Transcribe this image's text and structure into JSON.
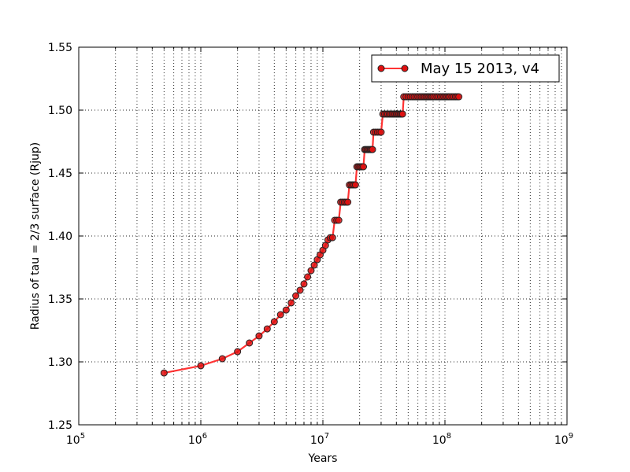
{
  "chart_data": {
    "type": "line",
    "xscale": "log",
    "xlabel": "Years",
    "ylabel": "Radius of tau = 2/3 surface (Rjup)",
    "xlim": [
      100000,
      1000000000
    ],
    "ylim": [
      1.25,
      1.55
    ],
    "grid": true,
    "legend_position": "top-right",
    "x_ticks": [
      {
        "base": "10",
        "exp": "5",
        "value": 100000
      },
      {
        "base": "10",
        "exp": "6",
        "value": 1000000
      },
      {
        "base": "10",
        "exp": "7",
        "value": 10000000
      },
      {
        "base": "10",
        "exp": "8",
        "value": 100000000
      },
      {
        "base": "10",
        "exp": "9",
        "value": 1000000000
      }
    ],
    "y_ticks": [
      "1.25",
      "1.30",
      "1.35",
      "1.40",
      "1.45",
      "1.50",
      "1.55"
    ],
    "colors": {
      "line": "#ff3333",
      "marker_fill": "#e01010",
      "marker_edge": "#222222",
      "grid": "#000000"
    },
    "series": [
      {
        "name": "May 15 2013, v4",
        "points": [
          [
            500000,
            1.2912
          ],
          [
            1000000,
            1.2969
          ],
          [
            1500000,
            1.3025
          ],
          [
            2000000,
            1.3081
          ],
          [
            2500000,
            1.315
          ],
          [
            3000000,
            1.3206
          ],
          [
            3500000,
            1.3262
          ],
          [
            4000000,
            1.3319
          ],
          [
            4500000,
            1.3375
          ],
          [
            5000000,
            1.3412
          ],
          [
            5500000,
            1.3469
          ],
          [
            6000000,
            1.3525
          ],
          [
            6500000,
            1.3569
          ],
          [
            7000000,
            1.3619
          ],
          [
            7500000,
            1.3675
          ],
          [
            8000000,
            1.3725
          ],
          [
            8500000,
            1.3769
          ],
          [
            9000000,
            1.3812
          ],
          [
            9500000,
            1.385
          ],
          [
            10000000,
            1.3887
          ],
          [
            10500000,
            1.3925
          ],
          [
            11000000,
            1.3969
          ],
          [
            11500000,
            1.3987
          ],
          [
            12000000,
            1.3987
          ],
          [
            12500000,
            1.4125
          ],
          [
            13000000,
            1.4125
          ],
          [
            13500000,
            1.4125
          ],
          [
            14000000,
            1.4269
          ],
          [
            14500000,
            1.4269
          ],
          [
            15000000,
            1.4269
          ],
          [
            15500000,
            1.4269
          ],
          [
            16000000,
            1.4269
          ],
          [
            16500000,
            1.4406
          ],
          [
            17000000,
            1.4406
          ],
          [
            17500000,
            1.4406
          ],
          [
            18000000,
            1.4406
          ],
          [
            18500000,
            1.4406
          ],
          [
            19000000,
            1.455
          ],
          [
            19500000,
            1.455
          ],
          [
            20000000,
            1.455
          ],
          [
            20500000,
            1.455
          ],
          [
            21000000,
            1.455
          ],
          [
            21500000,
            1.455
          ],
          [
            22000000,
            1.4687
          ],
          [
            22500000,
            1.4687
          ],
          [
            23000000,
            1.4687
          ],
          [
            23500000,
            1.4687
          ],
          [
            24000000,
            1.4687
          ],
          [
            24500000,
            1.4687
          ],
          [
            25000000,
            1.4687
          ],
          [
            25500000,
            1.4687
          ],
          [
            26000000,
            1.4825
          ],
          [
            27000000,
            1.4825
          ],
          [
            28000000,
            1.4825
          ],
          [
            29000000,
            1.4825
          ],
          [
            30000000,
            1.4825
          ],
          [
            31000000,
            1.4969
          ],
          [
            32000000,
            1.4969
          ],
          [
            33000000,
            1.4969
          ],
          [
            34000000,
            1.4969
          ],
          [
            35000000,
            1.4969
          ],
          [
            36000000,
            1.4969
          ],
          [
            37000000,
            1.4969
          ],
          [
            38000000,
            1.4969
          ],
          [
            39000000,
            1.4969
          ],
          [
            40000000,
            1.4969
          ],
          [
            41000000,
            1.4969
          ],
          [
            42000000,
            1.4969
          ],
          [
            43000000,
            1.4969
          ],
          [
            44000000,
            1.4969
          ],
          [
            45000000,
            1.4969
          ],
          [
            46000000,
            1.5106
          ],
          [
            48000000,
            1.5106
          ],
          [
            50000000,
            1.5106
          ],
          [
            52000000,
            1.5106
          ],
          [
            54000000,
            1.5106
          ],
          [
            56000000,
            1.5106
          ],
          [
            58000000,
            1.5106
          ],
          [
            60000000,
            1.5106
          ],
          [
            62000000,
            1.5106
          ],
          [
            64000000,
            1.5106
          ],
          [
            66000000,
            1.5106
          ],
          [
            68000000,
            1.5106
          ],
          [
            70000000,
            1.5106
          ],
          [
            72000000,
            1.5106
          ],
          [
            74000000,
            1.5106
          ],
          [
            76000000,
            1.5106
          ],
          [
            78000000,
            1.5106
          ],
          [
            80000000,
            1.5106
          ],
          [
            83000000,
            1.5106
          ],
          [
            86000000,
            1.5106
          ],
          [
            89000000,
            1.5106
          ],
          [
            92000000,
            1.5106
          ],
          [
            95000000,
            1.5106
          ],
          [
            98000000,
            1.5106
          ],
          [
            101000000,
            1.5106
          ],
          [
            104000000,
            1.5106
          ],
          [
            107000000,
            1.5106
          ],
          [
            110000000,
            1.5106
          ],
          [
            114000000,
            1.5106
          ],
          [
            118000000,
            1.5106
          ],
          [
            122000000,
            1.5106
          ],
          [
            126000000,
            1.5106
          ],
          [
            130000000,
            1.5106
          ]
        ]
      }
    ]
  }
}
